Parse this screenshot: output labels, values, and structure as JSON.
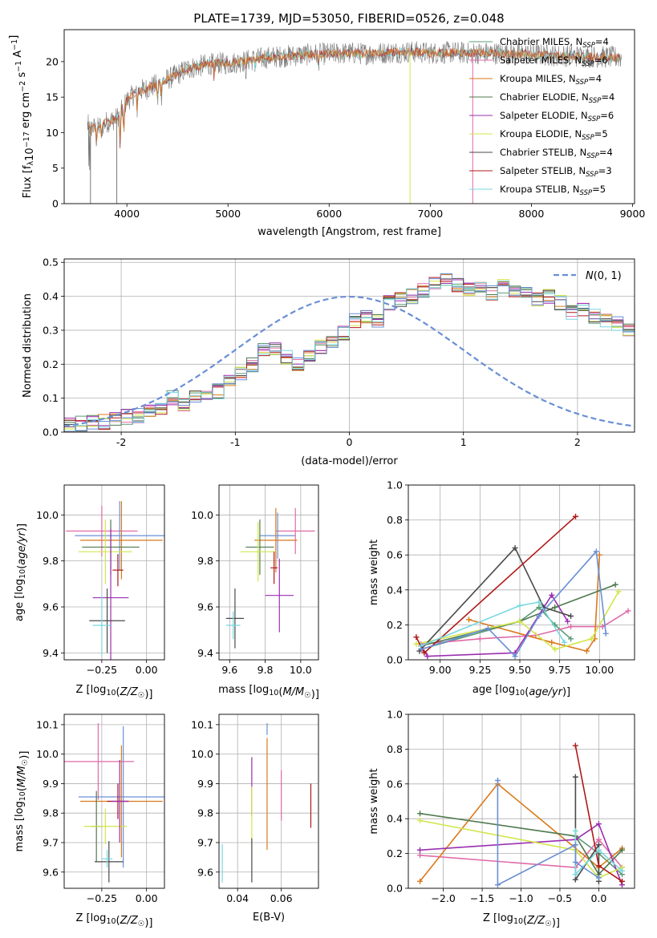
{
  "figure_title": "PLATE=1739, MJD=53050, FIBERID=0526, z=0.048",
  "colors": {
    "chabrier_miles": "#5b9c77",
    "salpeter_miles": "#e06aa8",
    "kroupa_miles": "#d97a1c",
    "chabrier_elodie": "#4f7a4f",
    "salpeter_elodie": "#9a2fb0",
    "kroupa_elodie": "#d2e54a",
    "chabrier_stelib": "#4a4a4a",
    "salpeter_stelib": "#b01818",
    "kroupa_stelib": "#79d8df",
    "blue_model": "#6a8fd6"
  },
  "chart_data": [
    {
      "id": "spectrum",
      "type": "line",
      "title": "PLATE=1739, MJD=53050, FIBERID=0526, z=0.048",
      "xlabel": "wavelength [Angstrom, rest frame]",
      "ylabel": "Flux [f_λ10^-17 erg cm^-2 s^-1 A^-1]",
      "xlim": [
        3380,
        9020
      ],
      "ylim": [
        0,
        24.5
      ],
      "xticks": [
        4000,
        5000,
        6000,
        7000,
        8000,
        9000
      ],
      "yticks": [
        0,
        5,
        10,
        15,
        20
      ],
      "legend_position": "top-right",
      "continuum": {
        "x": [
          3620,
          3700,
          3800,
          3900,
          4000,
          4100,
          4200,
          4300,
          4400,
          4500,
          4600,
          4700,
          4800,
          4900,
          5000,
          5200,
          5400,
          5600,
          5800,
          6000,
          6200,
          6400,
          6600,
          6800,
          7000,
          7200,
          7400,
          7600,
          7800,
          8000,
          8200,
          8400,
          8600,
          8800
        ],
        "y": [
          11,
          10.5,
          11.5,
          12,
          14.5,
          15.8,
          16.2,
          16.8,
          17.5,
          18.2,
          19,
          19.3,
          19.6,
          19.8,
          19.7,
          20.2,
          20.6,
          20.8,
          21,
          21.1,
          21.2,
          21.1,
          21.3,
          21.4,
          21.2,
          21.3,
          21.2,
          21.2,
          21.1,
          21,
          20.9,
          20.8,
          20.7,
          20.6
        ]
      },
      "legend": [
        {
          "label": "Chabrier MILES, N",
          "sub": "SSP",
          "tail": "=4",
          "color": "#5b9c77"
        },
        {
          "label": "Salpeter MILES, N",
          "sub": "SSP",
          "tail": "=6",
          "color": "#e06aa8"
        },
        {
          "label": "Kroupa MILES, N",
          "sub": "SSP",
          "tail": "=4",
          "color": "#d97a1c"
        },
        {
          "label": "Chabrier ELODIE, N",
          "sub": "SSP",
          "tail": "=4",
          "color": "#4f7a4f"
        },
        {
          "label": "Salpeter ELODIE, N",
          "sub": "SSP",
          "tail": "=6",
          "color": "#9a2fb0"
        },
        {
          "label": "Kroupa ELODIE, N",
          "sub": "SSP",
          "tail": "=5",
          "color": "#d2e54a"
        },
        {
          "label": "Chabrier STELIB, N",
          "sub": "SSP",
          "tail": "=4",
          "color": "#4a4a4a"
        },
        {
          "label": "Salpeter STELIB, N",
          "sub": "SSP",
          "tail": "=3",
          "color": "#b01818"
        },
        {
          "label": "Kroupa STELIB, N",
          "sub": "SSP",
          "tail": "=5",
          "color": "#79d8df"
        }
      ]
    },
    {
      "id": "residuals",
      "type": "histogram",
      "xlabel": "(data-model)/error",
      "ylabel": "Normed distribution",
      "xlim": [
        -2.5,
        2.5
      ],
      "ylim": [
        0,
        0.51
      ],
      "xticks": [
        -2,
        -1,
        0,
        1,
        2
      ],
      "yticks": [
        0.0,
        0.1,
        0.2,
        0.3,
        0.4,
        0.5
      ],
      "ytick_labels": [
        "0.0",
        "0.1",
        "0.2",
        "0.3",
        "0.4",
        "0.5"
      ],
      "bin_width": 0.1,
      "bin_start": -2.5,
      "base_counts": [
        0.02,
        0.025,
        0.03,
        0.03,
        0.04,
        0.045,
        0.05,
        0.06,
        0.075,
        0.1,
        0.085,
        0.1,
        0.115,
        0.12,
        0.15,
        0.17,
        0.2,
        0.24,
        0.25,
        0.22,
        0.2,
        0.22,
        0.25,
        0.27,
        0.29,
        0.33,
        0.34,
        0.33,
        0.38,
        0.39,
        0.4,
        0.42,
        0.44,
        0.45,
        0.43,
        0.42,
        0.42,
        0.41,
        0.43,
        0.42,
        0.41,
        0.39,
        0.4,
        0.38,
        0.35,
        0.36,
        0.34,
        0.33,
        0.32,
        0.3,
        0.31,
        0.29,
        0.28,
        0.27,
        0.24,
        0.22,
        0.22,
        0.2,
        0.18,
        0.16,
        0.14,
        0.12,
        0.1,
        0.1,
        0.08,
        0.07,
        0.06,
        0.055,
        0.05,
        0.04,
        0.035,
        0.03,
        0.03,
        0.025,
        0.02,
        0.02
      ],
      "series_colors": [
        "#5b9c77",
        "#e06aa8",
        "#d97a1c",
        "#4f7a4f",
        "#9a2fb0",
        "#d2e54a",
        "#4a4a4a",
        "#b01818",
        "#79d8df",
        "#6a8fd6"
      ],
      "legend": {
        "label": "N(0,1)",
        "color": "#6a8fd6",
        "style": "dashed",
        "position": "top-right"
      }
    },
    {
      "id": "age_vs_Z",
      "type": "errorbar",
      "xlabel": "Z [log10(Z/Z☉)]",
      "ylabel": "age  [log10(age/yr)]",
      "xlim": [
        -0.46,
        0.1
      ],
      "ylim": [
        9.37,
        10.13
      ],
      "xticks": [
        -0.25,
        0.0
      ],
      "xtick_labels": [
        "−0.25",
        "0.00"
      ],
      "yticks": [
        9.4,
        9.6,
        9.8,
        10.0
      ],
      "ytick_labels": [
        "9.4",
        "9.6",
        "9.8",
        "10.0"
      ],
      "points": [
        {
          "x": -0.25,
          "y": 9.93,
          "xerr": 0.2,
          "yerr": 0.11,
          "color": "#e06aa8"
        },
        {
          "x": -0.15,
          "y": 9.91,
          "xerr": 0.25,
          "yerr": 0.15,
          "color": "#6a8fd6"
        },
        {
          "x": -0.14,
          "y": 9.89,
          "xerr": 0.23,
          "yerr": 0.17,
          "color": "#d97a1c"
        },
        {
          "x": -0.2,
          "y": 9.86,
          "xerr": 0.16,
          "yerr": 0.12,
          "color": "#4f7a4f"
        },
        {
          "x": -0.23,
          "y": 9.84,
          "xerr": 0.15,
          "yerr": 0.14,
          "color": "#d2e54a"
        },
        {
          "x": -0.16,
          "y": 9.76,
          "xerr": 0.03,
          "yerr": 0.07,
          "color": "#b01818"
        },
        {
          "x": -0.2,
          "y": 9.64,
          "xerr": 0.1,
          "yerr": 0.3,
          "color": "#9a2fb0"
        },
        {
          "x": -0.22,
          "y": 9.54,
          "xerr": 0.1,
          "yerr": 0.14,
          "color": "#4a4a4a"
        },
        {
          "x": -0.25,
          "y": 9.52,
          "xerr": 0.05,
          "yerr": 0.13,
          "color": "#79d8df"
        }
      ]
    },
    {
      "id": "age_vs_mass",
      "type": "errorbar",
      "xlabel": "mass [log10(M/M☉)]",
      "ylabel": "",
      "xlim": [
        9.54,
        10.1
      ],
      "ylim": [
        9.37,
        10.13
      ],
      "xticks": [
        9.6,
        9.8,
        10.0
      ],
      "xtick_labels": [
        "9.6",
        "9.8",
        "10.0"
      ],
      "yticks": [
        9.4,
        9.6,
        9.8,
        10.0
      ],
      "ytick_labels": [
        "9.4",
        "9.6",
        "9.8",
        "10.0"
      ],
      "points": [
        {
          "x": 9.97,
          "y": 9.93,
          "xerr": 0.11,
          "yerr": 0.1,
          "color": "#e06aa8"
        },
        {
          "x": 9.87,
          "y": 9.91,
          "xerr": 0.1,
          "yerr": 0.1,
          "color": "#6a8fd6"
        },
        {
          "x": 9.86,
          "y": 9.89,
          "xerr": 0.12,
          "yerr": 0.14,
          "color": "#d97a1c"
        },
        {
          "x": 9.77,
          "y": 9.86,
          "xerr": 0.08,
          "yerr": 0.12,
          "color": "#4f7a4f"
        },
        {
          "x": 9.76,
          "y": 9.84,
          "xerr": 0.1,
          "yerr": 0.13,
          "color": "#d2e54a"
        },
        {
          "x": 9.85,
          "y": 9.77,
          "xerr": 0.02,
          "yerr": 0.07,
          "color": "#b01818"
        },
        {
          "x": 9.88,
          "y": 9.65,
          "xerr": 0.08,
          "yerr": 0.16,
          "color": "#9a2fb0"
        },
        {
          "x": 9.63,
          "y": 9.55,
          "xerr": 0.05,
          "yerr": 0.13,
          "color": "#4a4a4a"
        },
        {
          "x": 9.62,
          "y": 9.52,
          "xerr": 0.04,
          "yerr": 0.06,
          "color": "#79d8df"
        }
      ]
    },
    {
      "id": "weight_vs_age",
      "type": "line",
      "xlabel": "age  [log10(age/yr)]",
      "ylabel": "mass weight",
      "xlim": [
        8.8,
        10.22
      ],
      "ylim": [
        0,
        1.0
      ],
      "xticks": [
        9.0,
        9.25,
        9.5,
        9.75,
        10.0
      ],
      "xtick_labels": [
        "9.00",
        "9.25",
        "9.50",
        "9.75",
        "10.00"
      ],
      "yticks": [
        0.0,
        0.2,
        0.4,
        0.6,
        0.8,
        1.0
      ],
      "ytick_labels": [
        "0.0",
        "0.2",
        "0.4",
        "0.6",
        "0.8",
        "1.0"
      ],
      "series": [
        {
          "color": "#5b9c77",
          "x": [
            8.88,
            9.5,
            9.62,
            9.72,
            9.82
          ],
          "y": [
            0.06,
            0.22,
            0.3,
            0.2,
            0.12
          ]
        },
        {
          "color": "#e06aa8",
          "x": [
            8.88,
            9.25,
            9.6,
            9.82,
            10.02,
            10.18
          ],
          "y": [
            0.09,
            0.12,
            0.14,
            0.19,
            0.19,
            0.28
          ]
        },
        {
          "color": "#d97a1c",
          "x": [
            9.18,
            9.7,
            9.92,
            9.97,
            10.0
          ],
          "y": [
            0.23,
            0.1,
            0.05,
            0.12,
            0.6
          ]
        },
        {
          "color": "#4f7a4f",
          "x": [
            8.88,
            9.5,
            9.72,
            10.1
          ],
          "y": [
            0.08,
            0.22,
            0.3,
            0.43
          ]
        },
        {
          "color": "#9a2fb0",
          "x": [
            8.88,
            8.92,
            9.47,
            9.7,
            9.8
          ],
          "y": [
            0.08,
            0.02,
            0.04,
            0.37,
            0.22
          ]
        },
        {
          "color": "#d2e54a",
          "x": [
            8.85,
            9.5,
            9.72,
            9.95,
            10.12
          ],
          "y": [
            0.09,
            0.22,
            0.06,
            0.12,
            0.39
          ]
        },
        {
          "color": "#4a4a4a",
          "x": [
            8.87,
            9.47,
            9.65,
            9.82
          ],
          "y": [
            0.05,
            0.64,
            0.3,
            0.25
          ]
        },
        {
          "color": "#b01818",
          "x": [
            8.85,
            8.9,
            9.85
          ],
          "y": [
            0.13,
            0.04,
            0.82
          ]
        },
        {
          "color": "#79d8df",
          "x": [
            8.88,
            9.5,
            9.62,
            9.78
          ],
          "y": [
            0.08,
            0.31,
            0.33,
            0.1
          ]
        },
        {
          "color": "#6a8fd6",
          "x": [
            8.88,
            9.3,
            9.47,
            9.62,
            9.98,
            10.04
          ],
          "y": [
            0.06,
            0.18,
            0.02,
            0.25,
            0.62,
            0.15
          ]
        }
      ]
    },
    {
      "id": "mass_vs_Z",
      "type": "errorbar",
      "xlabel": "Z [log10(Z/Z☉)]",
      "ylabel": "mass [log10(M/M☉)]",
      "xlim": [
        -0.46,
        0.1
      ],
      "ylim": [
        9.545,
        10.135
      ],
      "xticks": [
        -0.25,
        0.0
      ],
      "xtick_labels": [
        "−0.25",
        "0.00"
      ],
      "yticks": [
        9.6,
        9.7,
        9.8,
        9.9,
        10.0,
        10.1
      ],
      "ytick_labels": [
        "9.6",
        "9.7",
        "9.8",
        "9.9",
        "10.0",
        "10.1"
      ],
      "points": [
        {
          "x": -0.27,
          "y": 9.975,
          "xerr": 0.2,
          "yerr": 0.13,
          "color": "#e06aa8"
        },
        {
          "x": -0.13,
          "y": 9.855,
          "xerr": 0.25,
          "yerr": 0.24,
          "color": "#6a8fd6"
        },
        {
          "x": -0.14,
          "y": 9.84,
          "xerr": 0.23,
          "yerr": 0.19,
          "color": "#d97a1c"
        },
        {
          "x": -0.28,
          "y": 9.755,
          "xerr": 0.03,
          "yerr": 0.12,
          "color": "#4f7a4f"
        },
        {
          "x": -0.23,
          "y": 9.755,
          "xerr": 0.12,
          "yerr": 0.06,
          "color": "#d2e54a"
        },
        {
          "x": -0.16,
          "y": 9.84,
          "xerr": 0.06,
          "yerr": 0.06,
          "color": "#b01818"
        },
        {
          "x": -0.15,
          "y": 9.84,
          "xerr": 0.05,
          "yerr": 0.14,
          "color": "#9a2fb0"
        },
        {
          "x": -0.21,
          "y": 9.635,
          "xerr": 0.08,
          "yerr": 0.07,
          "color": "#4a4a4a"
        },
        {
          "x": -0.22,
          "y": 9.645,
          "xerr": 0.03,
          "yerr": 0.03,
          "color": "#79d8df"
        }
      ]
    },
    {
      "id": "mass_vs_ebv",
      "type": "errorbar",
      "xlabel": "E(B-V)",
      "ylabel": "",
      "xlim": [
        0.0315,
        0.077
      ],
      "ylim": [
        9.545,
        10.135
      ],
      "xticks": [
        0.04,
        0.06
      ],
      "xtick_labels": [
        "0.04",
        "0.06"
      ],
      "yticks": [
        9.6,
        9.7,
        9.8,
        9.9,
        10.0,
        10.1
      ],
      "ytick_labels": [
        "9.6",
        "9.7",
        "9.8",
        "9.9",
        "10.0",
        "10.1"
      ],
      "points": [
        {
          "x": 0.0465,
          "y": 9.89,
          "xerr": 0,
          "yerr": 0.1,
          "color": "#9a2fb0"
        },
        {
          "x": 0.0465,
          "y": 9.79,
          "xerr": 0,
          "yerr": 0.1,
          "color": "#d2e54a"
        },
        {
          "x": 0.0465,
          "y": 9.64,
          "xerr": 0,
          "yerr": 0.075,
          "color": "#4a4a4a"
        },
        {
          "x": 0.0535,
          "y": 9.865,
          "xerr": 0,
          "yerr": 0.19,
          "color": "#d97a1c"
        },
        {
          "x": 0.0535,
          "y": 10.085,
          "xerr": 0,
          "yerr": 0.02,
          "color": "#6a8fd6"
        },
        {
          "x": 0.06,
          "y": 9.86,
          "xerr": 0,
          "yerr": 0.085,
          "color": "#e06aa8"
        },
        {
          "x": 0.0735,
          "y": 9.825,
          "xerr": 0,
          "yerr": 0.075,
          "color": "#b01818"
        },
        {
          "x": 0.033,
          "y": 9.63,
          "xerr": 0,
          "yerr": 0.065,
          "color": "#79d8df"
        }
      ]
    },
    {
      "id": "weight_vs_Z",
      "type": "line",
      "xlabel": "Z [log10(Z/Z☉)]",
      "ylabel": "mass weight",
      "xlim": [
        -2.45,
        0.46
      ],
      "ylim": [
        0,
        1.0
      ],
      "xticks": [
        -2.0,
        -1.5,
        -1.0,
        -0.5,
        0.0
      ],
      "xtick_labels": [
        "−2.0",
        "−1.5",
        "−1.0",
        "−0.5",
        "0.0"
      ],
      "yticks": [
        0.0,
        0.2,
        0.4,
        0.6,
        0.8,
        1.0
      ],
      "ytick_labels": [
        "0.0",
        "0.2",
        "0.4",
        "0.6",
        "0.8",
        "1.0"
      ],
      "series": [
        {
          "color": "#5b9c77",
          "x": [
            -0.3,
            0.0,
            0.3
          ],
          "y": [
            0.3,
            0.2,
            0.08
          ]
        },
        {
          "color": "#e06aa8",
          "x": [
            -2.3,
            -0.3,
            0.0,
            0.3
          ],
          "y": [
            0.19,
            0.12,
            0.28,
            0.12
          ]
        },
        {
          "color": "#d97a1c",
          "x": [
            -2.3,
            -1.3,
            0.0,
            0.3
          ],
          "y": [
            0.04,
            0.6,
            0.12,
            0.23
          ]
        },
        {
          "color": "#4f7a4f",
          "x": [
            -2.3,
            -0.3,
            0.0,
            0.3
          ],
          "y": [
            0.43,
            0.3,
            0.08,
            0.22
          ]
        },
        {
          "color": "#9a2fb0",
          "x": [
            -2.3,
            -0.3,
            0.0,
            0.3
          ],
          "y": [
            0.22,
            0.28,
            0.37,
            0.02
          ]
        },
        {
          "color": "#d2e54a",
          "x": [
            -2.3,
            -0.3,
            0.0,
            0.3
          ],
          "y": [
            0.39,
            0.22,
            0.06,
            0.12
          ]
        },
        {
          "color": "#4a4a4a",
          "x": [
            -0.3,
            -0.3,
            0.0,
            0.0
          ],
          "y": [
            0.64,
            0.05,
            0.25,
            0.04
          ]
        },
        {
          "color": "#b01818",
          "x": [
            -0.3,
            0.0,
            0.3
          ],
          "y": [
            0.82,
            0.13,
            0.04
          ]
        },
        {
          "color": "#79d8df",
          "x": [
            -0.3,
            -0.3,
            0.0,
            0.3
          ],
          "y": [
            0.33,
            0.08,
            0.22,
            0.1
          ]
        },
        {
          "color": "#6a8fd6",
          "x": [
            -1.3,
            -1.3,
            -0.3,
            -0.3,
            0.0
          ],
          "y": [
            0.62,
            0.02,
            0.25,
            0.15,
            0.06
          ]
        }
      ]
    }
  ]
}
